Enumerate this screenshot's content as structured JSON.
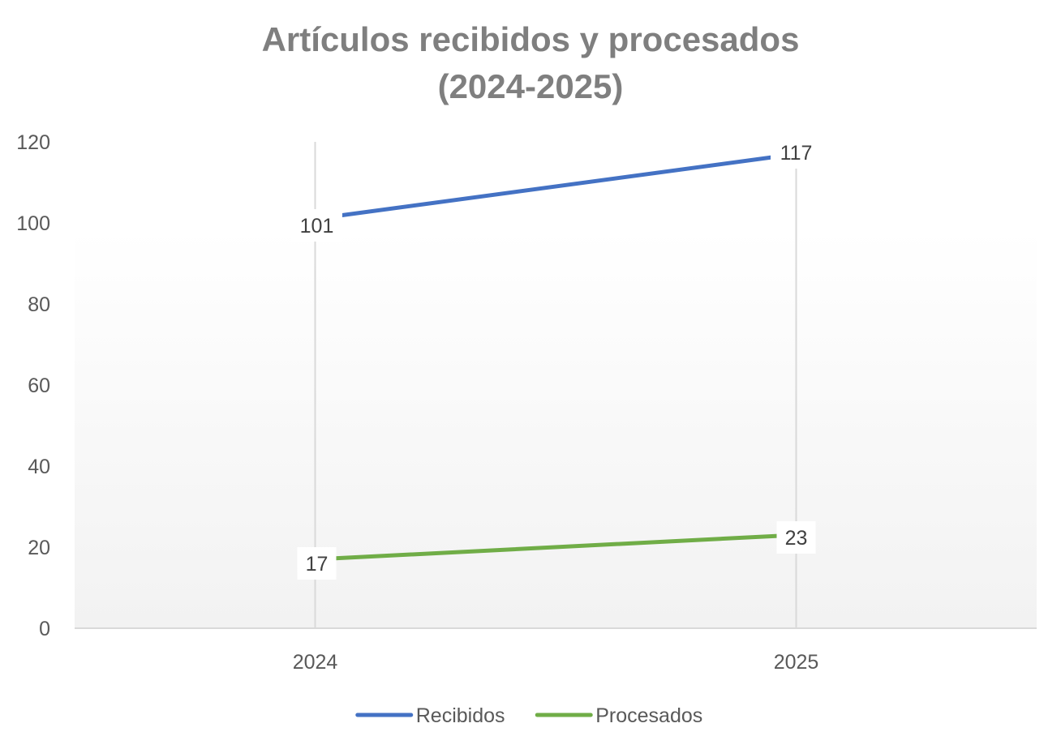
{
  "chart_data": {
    "type": "line",
    "title": "Artículos recibidos y procesados (2024-2025)",
    "title_lines": [
      "Artículos recibidos y procesados",
      "(2024-2025)"
    ],
    "categories": [
      "2024",
      "2025"
    ],
    "series": [
      {
        "name": "Recibidos",
        "values": [
          101,
          117
        ],
        "color": "#4472c4"
      },
      {
        "name": "Procesados",
        "values": [
          17,
          23
        ],
        "color": "#70ad47"
      }
    ],
    "xlabel": "",
    "ylabel": "",
    "ylim": [
      0,
      120
    ],
    "yticks": [
      0,
      20,
      40,
      60,
      80,
      100,
      120
    ],
    "grid": "vertical",
    "legend": "bottom",
    "data_labels": true,
    "text_color": "#595959",
    "title_color": "#7f7f7f",
    "grid_color": "#d9d9d9"
  }
}
